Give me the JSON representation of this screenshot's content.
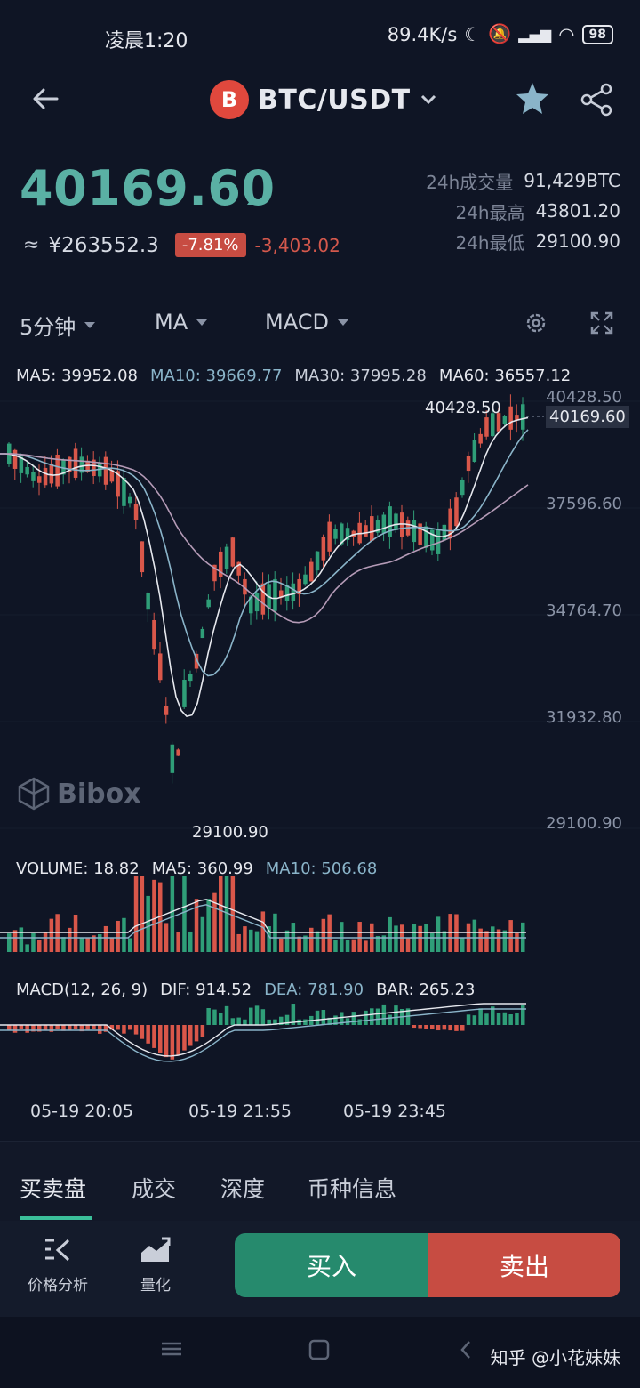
{
  "status": {
    "time": "凌晨1:20",
    "speed": "89.4K/s",
    "battery": "98"
  },
  "header": {
    "coin_letter": "B",
    "pair": "BTC/USDT"
  },
  "price": {
    "last": "40169.60",
    "approx": "≈",
    "cny": "¥263552.3",
    "pct": "-7.81%",
    "change": "-3,403.02"
  },
  "stats": [
    {
      "label": "24h成交量",
      "value": "91,429BTC"
    },
    {
      "label": "24h最高",
      "value": "43801.20"
    },
    {
      "label": "24h最低",
      "value": "29100.90"
    }
  ],
  "toolbar": {
    "interval": "5分钟",
    "main_indicator": "MA",
    "sub_indicator": "MACD"
  },
  "ma_legend": {
    "ma5": "MA5: 39952.08",
    "ma10": "MA10: 39669.77",
    "ma30": "MA30: 37995.28",
    "ma60": "MA60: 36557.12"
  },
  "chart": {
    "y_labels": [
      "40428.50",
      "37596.60",
      "34764.70",
      "31932.80",
      "29100.90"
    ],
    "current_price": "40169.60",
    "high_label": "40428.50",
    "low_label": "29100.90",
    "watermark": "Bibox",
    "colors": {
      "up": "#2f9e78",
      "down": "#d9574a",
      "ma5": "#e6e8ee",
      "ma10": "#8ab4c9",
      "ma30": "#b59bb7"
    }
  },
  "volume_legend": {
    "vol": "VOLUME: 18.82",
    "ma5": "MA5: 360.99",
    "ma10": "MA10: 506.68"
  },
  "macd_legend": {
    "title": "MACD(12, 26, 9)",
    "dif": "DIF: 914.52",
    "dea": "DEA: 781.90",
    "bar": "BAR: 265.23"
  },
  "time_axis": [
    "05-19 20:05",
    "05-19 21:55",
    "05-19 23:45"
  ],
  "tabs": [
    "买卖盘",
    "成交",
    "深度",
    "币种信息"
  ],
  "bottom": {
    "analysis": "价格分析",
    "quant": "量化",
    "buy": "买入",
    "sell": "卖出"
  },
  "watermark_zhihu": "知乎 @小花妹妹"
}
